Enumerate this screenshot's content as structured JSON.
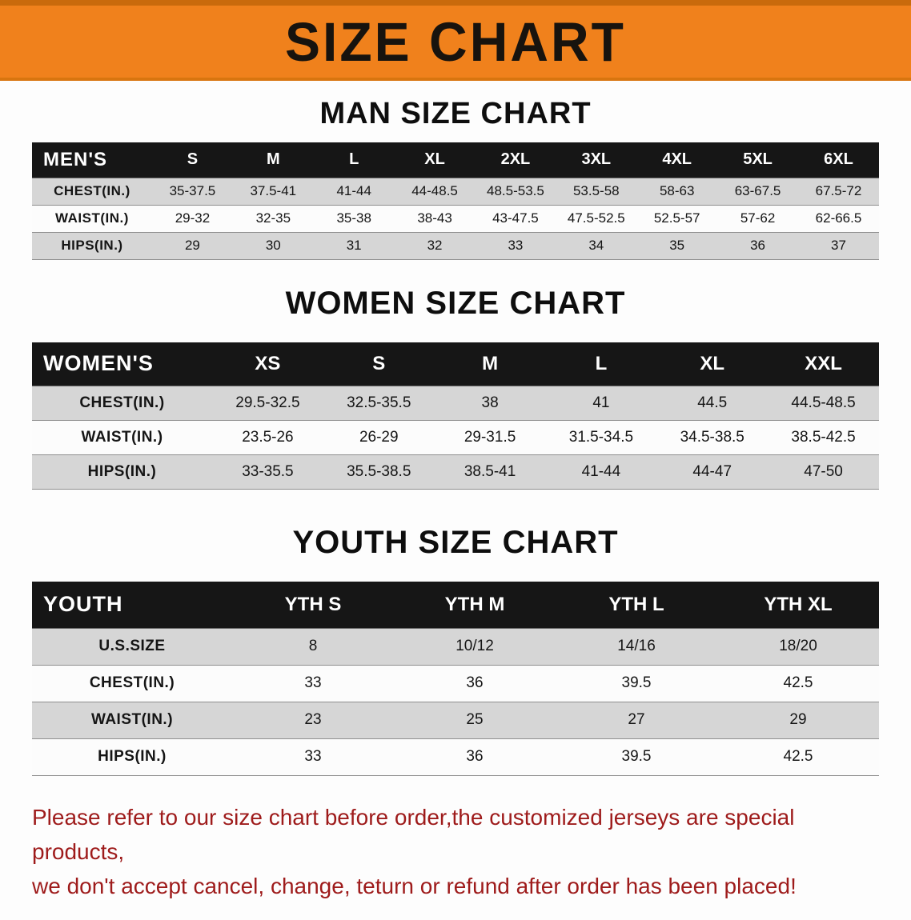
{
  "banner": {
    "title": "SIZE CHART"
  },
  "colors": {
    "banner_bg": "#f0811c",
    "table_header_bg": "#161616",
    "row_alt_bg": "#d6d6d6",
    "note_text": "#9e1b1b"
  },
  "sections": [
    {
      "id": "men",
      "heading": "MAN SIZE CHART",
      "table": {
        "header": [
          "MEN'S",
          "S",
          "M",
          "L",
          "XL",
          "2XL",
          "3XL",
          "4XL",
          "5XL",
          "6XL"
        ],
        "rows": [
          [
            "CHEST(IN.)",
            "35-37.5",
            "37.5-41",
            "41-44",
            "44-48.5",
            "48.5-53.5",
            "53.5-58",
            "58-63",
            "63-67.5",
            "67.5-72"
          ],
          [
            "WAIST(IN.)",
            "29-32",
            "32-35",
            "35-38",
            "38-43",
            "43-47.5",
            "47.5-52.5",
            "52.5-57",
            "57-62",
            "62-66.5"
          ],
          [
            "HIPS(IN.)",
            "29",
            "30",
            "31",
            "32",
            "33",
            "34",
            "35",
            "36",
            "37"
          ]
        ]
      }
    },
    {
      "id": "women",
      "heading": "WOMEN SIZE CHART",
      "table": {
        "header": [
          "WOMEN'S",
          "XS",
          "S",
          "M",
          "L",
          "XL",
          "XXL"
        ],
        "rows": [
          [
            "CHEST(IN.)",
            "29.5-32.5",
            "32.5-35.5",
            "38",
            "41",
            "44.5",
            "44.5-48.5"
          ],
          [
            "WAIST(IN.)",
            "23.5-26",
            "26-29",
            "29-31.5",
            "31.5-34.5",
            "34.5-38.5",
            "38.5-42.5"
          ],
          [
            "HIPS(IN.)",
            "33-35.5",
            "35.5-38.5",
            "38.5-41",
            "41-44",
            "44-47",
            "47-50"
          ]
        ]
      }
    },
    {
      "id": "youth",
      "heading": "YOUTH SIZE CHART",
      "table": {
        "header": [
          "YOUTH",
          "YTH S",
          "YTH M",
          "YTH L",
          "YTH XL"
        ],
        "rows": [
          [
            "U.S.SIZE",
            "8",
            "10/12",
            "14/16",
            "18/20"
          ],
          [
            "CHEST(IN.)",
            "33",
            "36",
            "39.5",
            "42.5"
          ],
          [
            "WAIST(IN.)",
            "23",
            "25",
            "27",
            "29"
          ],
          [
            "HIPS(IN.)",
            "33",
            "36",
            "39.5",
            "42.5"
          ]
        ]
      }
    }
  ],
  "note": {
    "line1": "Please refer to our size chart before order,the customized jerseys are special products,",
    "line2": "we don't accept cancel, change, teturn or refund after order has been placed!"
  }
}
